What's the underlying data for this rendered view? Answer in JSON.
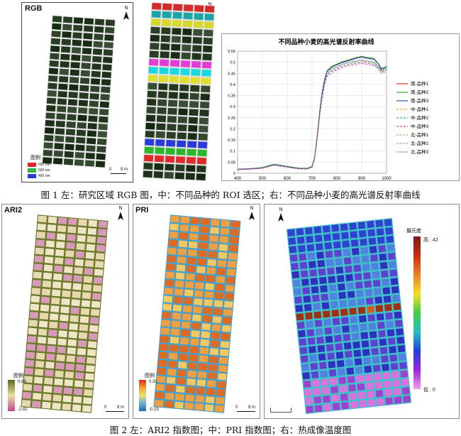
{
  "figure1": {
    "caption": "图 1  左：研究区域 RGB 图，中：不同品种的 ROI 选区；右：不同品种小麦的高光谱反射率曲线",
    "rgb_panel": {
      "title": "RGB",
      "legend_title": "图例",
      "legend_items": [
        {
          "label": "650 nm",
          "color": "#e8242a"
        },
        {
          "label": "550 nm",
          "color": "#2fb84a"
        },
        {
          "label": "450 nm",
          "color": "#2a3fd6"
        }
      ],
      "scale_labels": [
        "0",
        "9 m"
      ],
      "north": "N"
    },
    "roi_panel": {
      "north": "N",
      "bands": [
        "#d42a2a",
        "#1aa6a6",
        "#d8d82a",
        "#e33ad8",
        "#1ad8e0",
        "#e0e02a",
        "#2a3ad8",
        "#2ab82a",
        "#e02a2a"
      ]
    }
  },
  "figure2": {
    "caption": "图 2  左：ARI2 指数图；中：PRI 指数图；右：热成像温度图",
    "ari2_panel": {
      "title": "ARI2",
      "legend_title": "图例",
      "max": "0.89",
      "min": "-2.82",
      "scale_labels": [
        "0",
        "9 m"
      ],
      "north": "N"
    },
    "pri_panel": {
      "title": "PRI",
      "legend_title": "图例",
      "max": "0.31",
      "min": "-0.23",
      "scale_labels": [
        "0",
        "9 m"
      ],
      "north": "N"
    },
    "thermal_panel": {
      "legend_title": "摄氏度",
      "high_label": "高 : 42",
      "low_label": "低 : 0",
      "north": "N"
    }
  },
  "chart_data": {
    "type": "line",
    "title": "不同品种小麦的高光谱反射率曲线",
    "xlim": [
      400,
      1000
    ],
    "ylim": [
      0,
      0.55
    ],
    "x_ticks": [
      400,
      500,
      600,
      700,
      800,
      900,
      1000
    ],
    "y_ticks": [
      0,
      0.05,
      0.1,
      0.15,
      0.2,
      0.25,
      0.3,
      0.35,
      0.4,
      0.45,
      0.5,
      0.55
    ],
    "y_tick_labels": [
      "0",
      "0.05",
      "0.1",
      "0.15",
      "0.2",
      "0.25",
      "0.3",
      "0.35",
      "0.4",
      "0.45",
      "0.5",
      "0.55"
    ],
    "grid": true,
    "legend_position": "right",
    "x": [
      400,
      450,
      500,
      530,
      550,
      570,
      600,
      650,
      680,
      700,
      710,
      720,
      730,
      740,
      750,
      760,
      780,
      800,
      820,
      850,
      880,
      900,
      920,
      950,
      970,
      980,
      990,
      1000
    ],
    "series": [
      {
        "name": "南-品种1",
        "color": "#d62728",
        "dash": "solid",
        "values": [
          0.018,
          0.02,
          0.025,
          0.035,
          0.04,
          0.036,
          0.03,
          0.022,
          0.022,
          0.03,
          0.07,
          0.16,
          0.27,
          0.36,
          0.42,
          0.46,
          0.48,
          0.49,
          0.5,
          0.51,
          0.52,
          0.525,
          0.52,
          0.515,
          0.49,
          0.47,
          0.475,
          0.48
        ]
      },
      {
        "name": "南-品种2",
        "color": "#2ca02c",
        "dash": "solid",
        "values": [
          0.019,
          0.021,
          0.026,
          0.036,
          0.041,
          0.037,
          0.031,
          0.023,
          0.023,
          0.031,
          0.072,
          0.162,
          0.272,
          0.362,
          0.422,
          0.462,
          0.482,
          0.492,
          0.502,
          0.512,
          0.522,
          0.527,
          0.522,
          0.517,
          0.49,
          0.472,
          0.476,
          0.481
        ]
      },
      {
        "name": "南-品种3",
        "color": "#1f4fbf",
        "dash": "solid",
        "values": [
          0.018,
          0.02,
          0.024,
          0.034,
          0.039,
          0.035,
          0.029,
          0.021,
          0.021,
          0.029,
          0.069,
          0.158,
          0.268,
          0.358,
          0.418,
          0.458,
          0.478,
          0.488,
          0.498,
          0.508,
          0.518,
          0.523,
          0.518,
          0.513,
          0.488,
          0.468,
          0.473,
          0.478
        ]
      },
      {
        "name": "中-品种1",
        "color": "#ff9f1a",
        "dash": "dashed",
        "values": [
          0.017,
          0.019,
          0.023,
          0.032,
          0.037,
          0.033,
          0.028,
          0.02,
          0.02,
          0.028,
          0.066,
          0.15,
          0.255,
          0.34,
          0.4,
          0.44,
          0.46,
          0.47,
          0.48,
          0.49,
          0.495,
          0.5,
          0.495,
          0.49,
          0.47,
          0.455,
          0.46,
          0.465
        ]
      },
      {
        "name": "中-品种2",
        "color": "#2a9fd6",
        "dash": "dashed",
        "values": [
          0.017,
          0.019,
          0.023,
          0.033,
          0.038,
          0.034,
          0.028,
          0.02,
          0.02,
          0.028,
          0.067,
          0.152,
          0.257,
          0.342,
          0.402,
          0.442,
          0.462,
          0.472,
          0.482,
          0.492,
          0.497,
          0.502,
          0.497,
          0.492,
          0.472,
          0.457,
          0.462,
          0.467
        ]
      },
      {
        "name": "中-品种3",
        "color": "#d63ad6",
        "dash": "dashed",
        "values": [
          0.016,
          0.018,
          0.022,
          0.031,
          0.036,
          0.032,
          0.027,
          0.019,
          0.019,
          0.027,
          0.064,
          0.148,
          0.25,
          0.335,
          0.395,
          0.435,
          0.455,
          0.465,
          0.475,
          0.485,
          0.49,
          0.495,
          0.49,
          0.485,
          0.465,
          0.45,
          0.455,
          0.46
        ]
      },
      {
        "name": "北-品种1",
        "color": "#6b8e23",
        "dash": "dotted",
        "values": [
          0.018,
          0.02,
          0.024,
          0.034,
          0.039,
          0.035,
          0.029,
          0.021,
          0.021,
          0.029,
          0.068,
          0.156,
          0.262,
          0.35,
          0.41,
          0.45,
          0.47,
          0.48,
          0.49,
          0.5,
          0.505,
          0.51,
          0.505,
          0.5,
          0.478,
          0.462,
          0.467,
          0.472
        ]
      },
      {
        "name": "北-品种2",
        "color": "#3a7dbf",
        "dash": "dotted",
        "values": [
          0.018,
          0.02,
          0.024,
          0.034,
          0.039,
          0.035,
          0.029,
          0.021,
          0.021,
          0.029,
          0.069,
          0.157,
          0.264,
          0.352,
          0.412,
          0.452,
          0.472,
          0.482,
          0.492,
          0.502,
          0.507,
          0.512,
          0.507,
          0.502,
          0.48,
          0.464,
          0.469,
          0.474
        ]
      },
      {
        "name": "北-品种3",
        "color": "#b03030",
        "dash": "dotted",
        "values": [
          0.017,
          0.019,
          0.023,
          0.033,
          0.038,
          0.034,
          0.028,
          0.02,
          0.02,
          0.028,
          0.067,
          0.154,
          0.26,
          0.348,
          0.408,
          0.448,
          0.468,
          0.478,
          0.488,
          0.498,
          0.503,
          0.508,
          0.503,
          0.498,
          0.476,
          0.46,
          0.465,
          0.47
        ]
      }
    ]
  }
}
